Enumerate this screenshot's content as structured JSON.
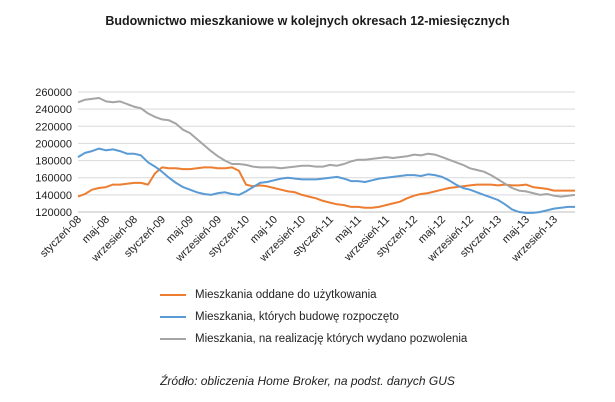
{
  "chart_data": {
    "type": "line",
    "title": "Budownictwo mieszkaniowe w kolejnych okresach 12-miesięcznych",
    "xlabel": "",
    "ylabel": "",
    "ylim": [
      120000,
      260000
    ],
    "yticks": [
      120000,
      140000,
      160000,
      180000,
      200000,
      220000,
      240000,
      260000
    ],
    "grid": true,
    "legend_position": "bottom",
    "x_start": "styczeń-08",
    "xtick_labels": [
      "styczeń-08",
      "maj-08",
      "wrzesień-08",
      "styczeń-09",
      "maj-09",
      "wrzesień-09",
      "styczeń-10",
      "maj-10",
      "wrzesień-10",
      "styczeń-11",
      "maj-11",
      "wrzesień-11",
      "styczeń-12",
      "maj-12",
      "wrzesień-12",
      "styczeń-13",
      "maj-13",
      "wrzesień-13"
    ],
    "series": [
      {
        "name": "Mieszkania oddane do użytkowania",
        "color": "#ed7d31",
        "values": [
          138000,
          141000,
          146000,
          148000,
          149000,
          152000,
          152000,
          153000,
          154000,
          154000,
          152000,
          165000,
          172000,
          171000,
          171000,
          170000,
          170000,
          171000,
          172000,
          172000,
          171000,
          171000,
          172000,
          168000,
          152000,
          150000,
          151000,
          150000,
          148000,
          146000,
          144000,
          143000,
          140000,
          138000,
          136000,
          133000,
          131000,
          129000,
          128000,
          126000,
          126000,
          125000,
          125000,
          126000,
          128000,
          130000,
          132000,
          136000,
          139000,
          141000,
          142000,
          144000,
          146000,
          148000,
          149000,
          150000,
          151000,
          152000,
          152000,
          152000,
          151000,
          152000,
          151000,
          151000,
          152000,
          149000,
          148000,
          147000,
          145000,
          145000,
          145000,
          145000
        ]
      },
      {
        "name": "Mieszkania, których budowę rozpoczęto",
        "color": "#5b9bd5",
        "values": [
          184000,
          189000,
          191000,
          194000,
          192000,
          193000,
          191000,
          188000,
          188000,
          186000,
          178000,
          173000,
          167000,
          160000,
          154000,
          149000,
          146000,
          143000,
          141000,
          140000,
          142000,
          143000,
          141000,
          140000,
          144000,
          149000,
          154000,
          155000,
          157000,
          159000,
          160000,
          159000,
          158000,
          158000,
          158000,
          159000,
          160000,
          161000,
          159000,
          156000,
          156000,
          155000,
          157000,
          159000,
          160000,
          161000,
          162000,
          163000,
          163000,
          162000,
          164000,
          163000,
          161000,
          157000,
          152000,
          148000,
          146000,
          143000,
          140000,
          137000,
          134000,
          129000,
          123000,
          120000,
          119000,
          119000,
          120000,
          122000,
          124000,
          125000,
          126000,
          126000
        ]
      },
      {
        "name": "Mieszkania, na realizację których wydano pozwolenia",
        "color": "#a5a5a5",
        "values": [
          248000,
          251000,
          252000,
          253000,
          249000,
          248000,
          249000,
          246000,
          243000,
          241000,
          235000,
          231000,
          228000,
          227000,
          223000,
          216000,
          212000,
          205000,
          198000,
          191000,
          185000,
          180000,
          176000,
          176000,
          175000,
          173000,
          172000,
          172000,
          172000,
          171000,
          172000,
          173000,
          174000,
          174000,
          173000,
          173000,
          175000,
          174000,
          176000,
          179000,
          181000,
          181000,
          182000,
          183000,
          184000,
          183000,
          184000,
          185000,
          187000,
          186000,
          188000,
          187000,
          184000,
          181000,
          178000,
          175000,
          171000,
          169000,
          167000,
          163000,
          158000,
          153000,
          148000,
          145000,
          144000,
          142000,
          140000,
          141000,
          139000,
          138000,
          139000,
          140000
        ]
      }
    ]
  },
  "source": "Źródło: obliczenia Home Broker, na podst. danych GUS"
}
